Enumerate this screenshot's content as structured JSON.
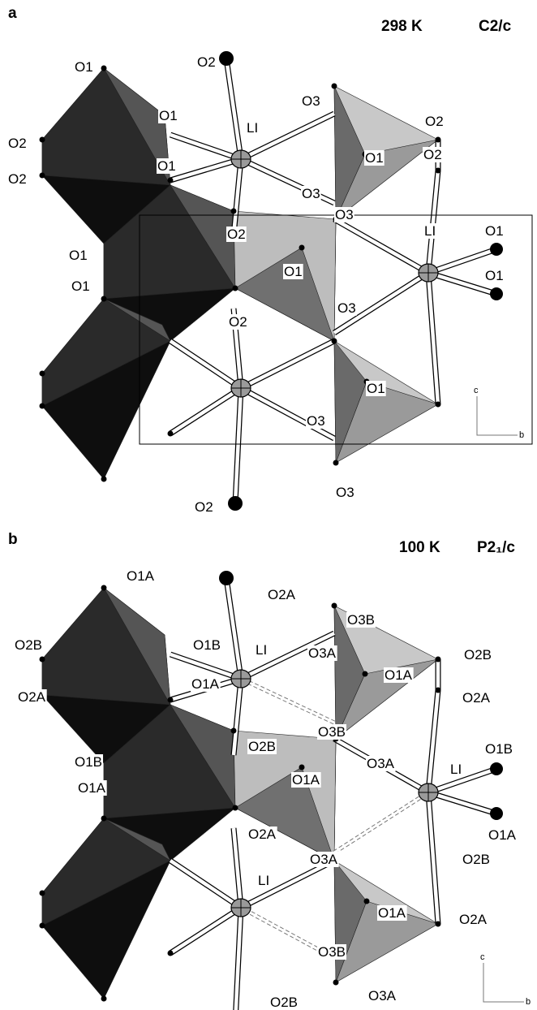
{
  "panels": [
    {
      "letter": "a",
      "temperature": "298 K",
      "space_group": "C2/c",
      "atom_labels": [
        "O1",
        "O2",
        "LI",
        "O3",
        "O2",
        "O1",
        "O1",
        "O2",
        "O2",
        "O1",
        "O2",
        "O3",
        "O3",
        "O1",
        "LI",
        "O2",
        "O1",
        "O1",
        "O1",
        "O1",
        "O3",
        "O2",
        "O1",
        "O3",
        "O2",
        "O3"
      ],
      "axis_labels": [
        "c",
        "b"
      ]
    },
    {
      "letter": "b",
      "temperature": "100 K",
      "space_group": "P2₁/c",
      "atom_labels": [
        "O1A",
        "O2A",
        "O3B",
        "O2B",
        "O1B",
        "LI",
        "O3A",
        "O2B",
        "O1A",
        "O1A",
        "O2A",
        "O2A",
        "O3B",
        "O1B",
        "O2B",
        "O1B",
        "O3A",
        "LI",
        "O1A",
        "O1A",
        "O2A",
        "O1A",
        "O3A",
        "O2B",
        "LI",
        "O1A",
        "O2A",
        "O3B",
        "O3A",
        "O2B"
      ],
      "axis_labels": [
        "c",
        "b"
      ]
    }
  ]
}
